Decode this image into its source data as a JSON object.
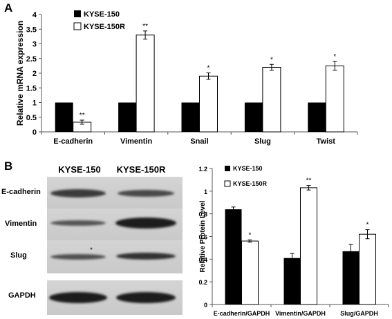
{
  "panels": {
    "a": "A",
    "b": "B"
  },
  "blot": {
    "col_labels": [
      "KYSE-150",
      "KYSE-150R"
    ],
    "row_labels": [
      "E-cadherin",
      "Vimentin",
      "Slug",
      "GAPDH"
    ]
  },
  "chart_data": [
    {
      "type": "bar",
      "ylabel": "Relative mRNA expression",
      "xlabel": "",
      "ylim": [
        0,
        4
      ],
      "yticks": [
        "0",
        "0.5",
        "1",
        "1.5",
        "2",
        "2.5",
        "3",
        "3.5",
        "4"
      ],
      "categories": [
        "E-cadherin",
        "Vimentin",
        "Snail",
        "Slug",
        "Twist"
      ],
      "series": [
        {
          "name": "KYSE-150",
          "color": "#000000",
          "values": [
            1,
            1,
            1,
            1,
            1
          ],
          "errors": [
            0,
            0,
            0,
            0,
            0
          ],
          "stars": [
            "",
            "",
            "",
            "",
            ""
          ]
        },
        {
          "name": "KYSE-150R",
          "color": "#ffffff",
          "values": [
            0.33,
            3.3,
            1.9,
            2.2,
            2.25
          ],
          "errors": [
            0.07,
            0.14,
            0.11,
            0.1,
            0.15
          ],
          "stars": [
            "**",
            "**",
            "*",
            "*",
            "*"
          ]
        }
      ],
      "legend": "top-left",
      "grid": false
    },
    {
      "type": "bar",
      "ylabel": "Relative Protein Level",
      "xlabel": "",
      "ylim": [
        0,
        1.2
      ],
      "yticks": [
        "0",
        "0.2",
        "0.4",
        "0.6",
        "0.8",
        "1",
        "1.2"
      ],
      "categories": [
        "E-cadherin/GAPDH",
        "Vimentin/GAPDH",
        "Slug/GAPDH"
      ],
      "series": [
        {
          "name": "KYSE-150",
          "color": "#000000",
          "values": [
            0.84,
            0.41,
            0.47
          ],
          "errors": [
            0.02,
            0.04,
            0.06
          ],
          "stars": [
            "",
            "",
            ""
          ]
        },
        {
          "name": "KYSE-150R",
          "color": "#ffffff",
          "values": [
            0.56,
            1.03,
            0.62
          ],
          "errors": [
            0.01,
            0.02,
            0.04
          ],
          "stars": [
            "*",
            "**",
            "*"
          ]
        }
      ],
      "legend": "top-left",
      "grid": false
    }
  ]
}
